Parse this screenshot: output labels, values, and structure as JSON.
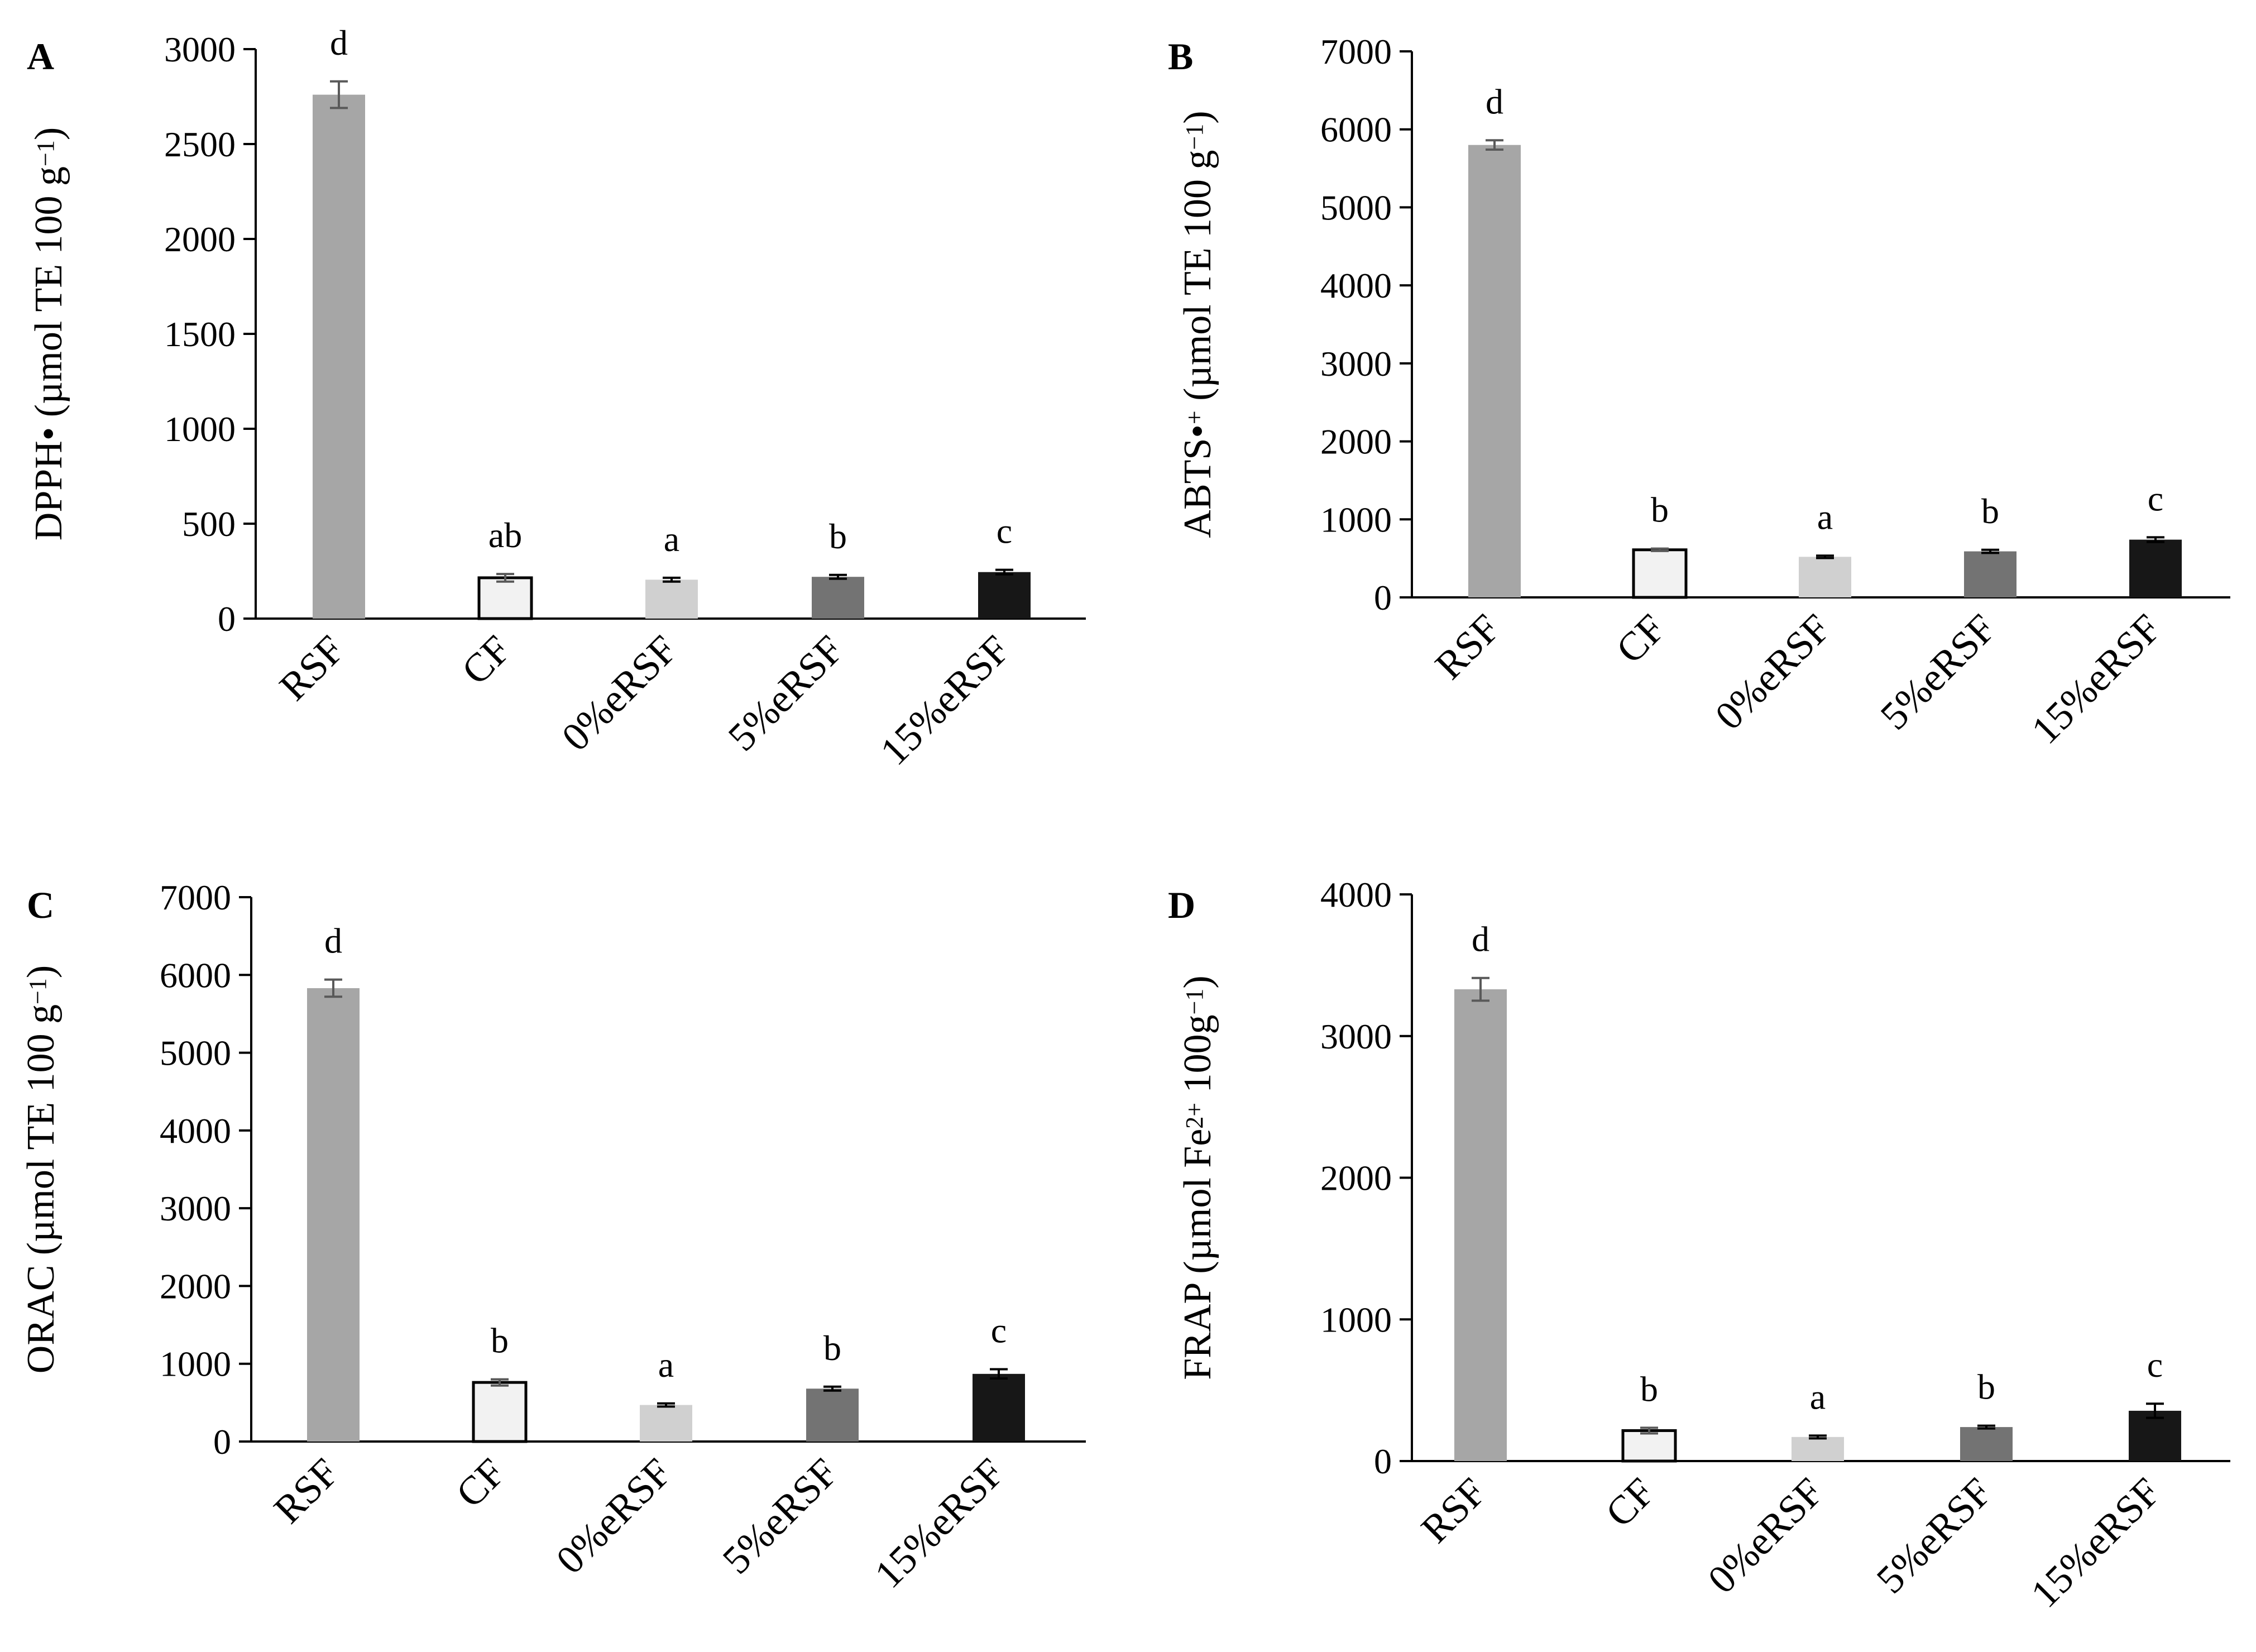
{
  "figure": {
    "panels": [
      "A",
      "B",
      "C",
      "D"
    ]
  },
  "colors": {
    "RSF": "#a6a6a6",
    "CF": "#f2f2f2",
    "0%eRSF": "#d0d0d0",
    "5%eRSF": "#737373",
    "15%eRSF": "#171717",
    "axis": "#000000",
    "error_bar_gray": "#595959",
    "error_bar_black": "#000000"
  },
  "chart_data": [
    {
      "panel": "A",
      "type": "bar",
      "categories": [
        "RSF",
        "CF",
        "0%eRSF",
        "5%eRSF",
        "15%eRSF"
      ],
      "values": [
        2760,
        215,
        205,
        220,
        245
      ],
      "errors": [
        70,
        20,
        10,
        10,
        12
      ],
      "significance": [
        "d",
        "ab",
        "a",
        "b",
        "c"
      ],
      "ylim": [
        0,
        3000
      ],
      "yticks": [
        0,
        500,
        1000,
        1500,
        2000,
        2500,
        3000
      ],
      "ytick_labels": [
        "0",
        "500",
        "1000",
        "1500",
        "2000",
        "2500",
        "3000"
      ],
      "ylabel": {
        "main": "DPPH• (µmol TE 100 g",
        "sup": "−1",
        "close": ")"
      },
      "xlabel": "",
      "title": ""
    },
    {
      "panel": "B",
      "type": "bar",
      "categories": [
        "RSF",
        "CF",
        "0%eRSF",
        "5%eRSF",
        "15%eRSF"
      ],
      "values": [
        5800,
        610,
        520,
        590,
        740
      ],
      "errors": [
        60,
        15,
        15,
        20,
        30
      ],
      "significance": [
        "d",
        "b",
        "a",
        "b",
        "c"
      ],
      "ylim": [
        0,
        7000
      ],
      "yticks": [
        0,
        1000,
        2000,
        3000,
        4000,
        5000,
        6000,
        7000
      ],
      "ytick_labels": [
        "0",
        "1000",
        "2000",
        "3000",
        "4000",
        "5000",
        "6000",
        "7000"
      ],
      "ylabel": {
        "main": "ABTS•",
        "sup": "+",
        "rest": " (µmol TE 100 g",
        "sup2": "−1",
        "close": ")"
      },
      "xlabel": "",
      "title": ""
    },
    {
      "panel": "C",
      "type": "bar",
      "categories": [
        "RSF",
        "CF",
        "0%eRSF",
        "5%eRSF",
        "15%eRSF"
      ],
      "values": [
        5830,
        760,
        470,
        680,
        870
      ],
      "errors": [
        110,
        40,
        20,
        25,
        60
      ],
      "significance": [
        "d",
        "b",
        "a",
        "b",
        "c"
      ],
      "ylim": [
        0,
        7000
      ],
      "yticks": [
        0,
        1000,
        2000,
        3000,
        4000,
        5000,
        6000,
        7000
      ],
      "ytick_labels": [
        "0",
        "1000",
        "2000",
        "3000",
        "4000",
        "5000",
        "6000",
        "7000"
      ],
      "ylabel": {
        "main": "ORAC (µmol TE 100 g",
        "sup": "−1",
        "close": ")"
      },
      "xlabel": "",
      "title": ""
    },
    {
      "panel": "D",
      "type": "bar",
      "categories": [
        "RSF",
        "CF",
        "0%eRSF",
        "5%eRSF",
        "15%eRSF"
      ],
      "values": [
        3330,
        215,
        170,
        240,
        355
      ],
      "errors": [
        80,
        20,
        10,
        10,
        50
      ],
      "significance": [
        "d",
        "b",
        "a",
        "b",
        "c"
      ],
      "ylim": [
        0,
        4000
      ],
      "yticks": [
        0,
        1000,
        2000,
        3000,
        4000
      ],
      "ytick_labels": [
        "0",
        "1000",
        "2000",
        "3000",
        "4000"
      ],
      "ylabel": {
        "main": "FRAP (µmol Fe",
        "sup": "2+",
        "rest": " 100g",
        "sup2": "−1",
        "close": ")"
      },
      "xlabel": "",
      "title": ""
    }
  ]
}
